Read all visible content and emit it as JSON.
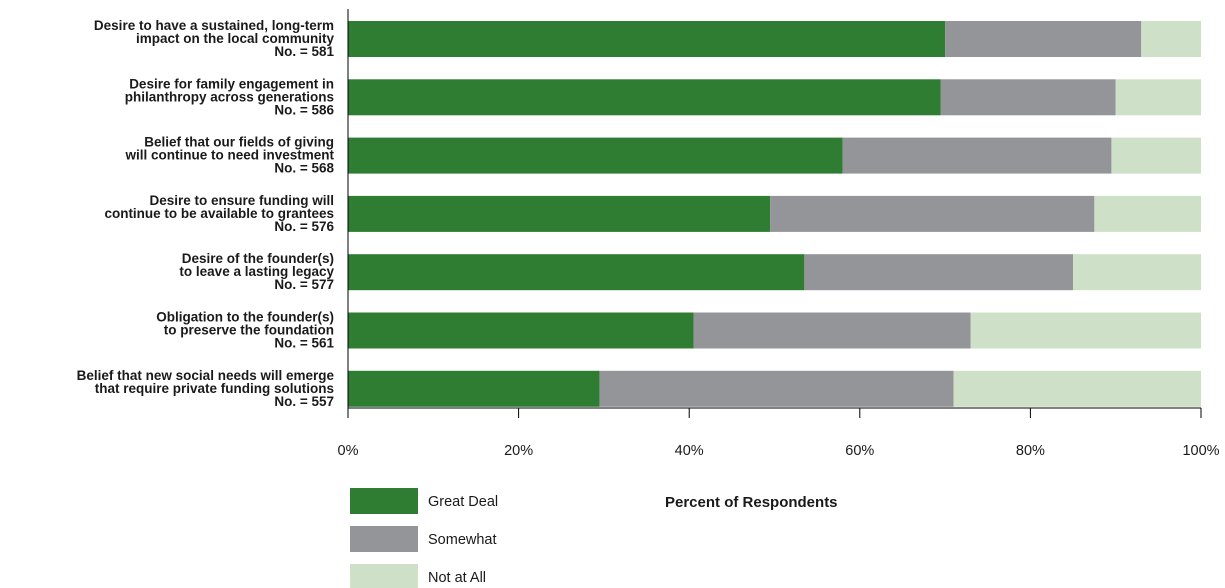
{
  "chart_data": {
    "type": "bar",
    "orientation": "horizontal",
    "stacked": true,
    "title": "",
    "xlabel": "Percent of Respondents",
    "ylabel": "",
    "xlim": [
      0,
      100
    ],
    "x_ticks": [
      "0%",
      "20%",
      "40%",
      "60%",
      "80%",
      "100%"
    ],
    "grid": false,
    "legend_position": "bottom-left",
    "categories": [
      [
        "Desire to have a sustained, long-term",
        "impact on the local community",
        "No. = 581"
      ],
      [
        "Desire for family engagement in",
        "philanthropy across generations",
        "No. = 586"
      ],
      [
        "Belief that our fields of giving",
        "will continue to need investment",
        "No. = 568"
      ],
      [
        "Desire to ensure funding will",
        "continue to be available to grantees",
        "No. = 576"
      ],
      [
        "Desire of the founder(s)",
        "to leave a lasting legacy",
        "No. = 577"
      ],
      [
        "Obligation to the founder(s)",
        "to preserve the foundation",
        "No. = 561"
      ],
      [
        "Belief that new social needs will emerge",
        "that require private funding solutions",
        "No. = 557"
      ]
    ],
    "series": [
      {
        "name": "Great Deal",
        "color": "#2e7d32",
        "values": [
          70,
          69.5,
          58,
          49.5,
          53.5,
          40.5,
          29.5
        ]
      },
      {
        "name": "Somewhat",
        "color": "#939598",
        "values": [
          23,
          20.5,
          31.5,
          38,
          31.5,
          32.5,
          41.5
        ]
      },
      {
        "name": "Not at All",
        "color": "#cfe0c8",
        "values": [
          7,
          10,
          10.5,
          12.5,
          15,
          27,
          29
        ]
      }
    ]
  }
}
